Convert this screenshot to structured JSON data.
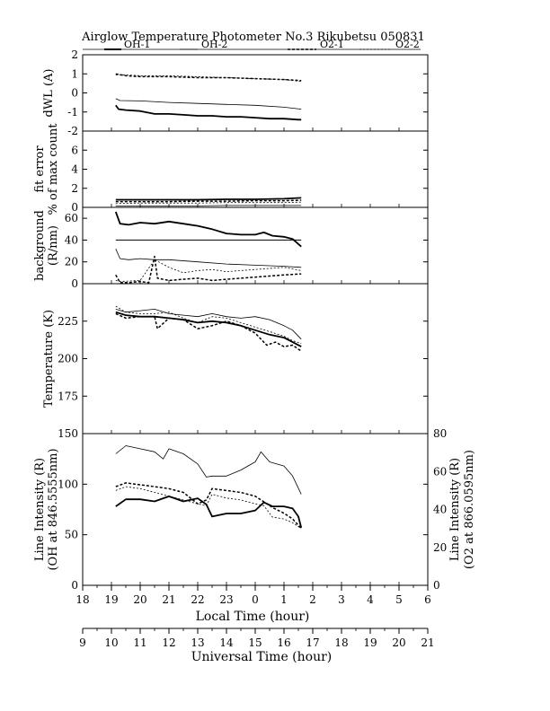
{
  "chart_data": {
    "type": "line",
    "title": "Airglow Temperature Photometer No.3  Rikubetsu   050831",
    "legend": [
      {
        "label": "OH-1",
        "color": "#000000",
        "style": "solid-thick"
      },
      {
        "label": "OH-2",
        "color": "#000000",
        "style": "solid-thin"
      },
      {
        "label": "O2-1",
        "color": "#000000",
        "style": "dashed-thick"
      },
      {
        "label": "O2-2",
        "color": "#000000",
        "style": "dashed-thin"
      }
    ],
    "legend_position": "top",
    "x_axes": {
      "local": {
        "label": "Local Time (hour)",
        "ticks": [
          "18",
          "19",
          "20",
          "21",
          "22",
          "23",
          "0",
          "1",
          "2",
          "3",
          "4",
          "5",
          "6"
        ],
        "range": [
          18,
          30
        ]
      },
      "universal": {
        "label": "Universal Time (hour)",
        "ticks": [
          "9",
          "10",
          "11",
          "12",
          "13",
          "14",
          "15",
          "16",
          "17",
          "18",
          "19",
          "20",
          "21"
        ],
        "range": [
          9,
          21
        ]
      }
    },
    "panels": [
      {
        "id": "dwl",
        "ylabel": "dWL (A)",
        "ylim": [
          -2,
          2
        ],
        "yticks": [
          "2",
          "1",
          "0",
          "-1",
          "-2"
        ],
        "series": [
          {
            "name": "OH-1",
            "x": [
              19.15,
              19.25,
              19.5,
              20.0,
              20.5,
              21.0,
              21.5,
              22.0,
              22.5,
              23.0,
              23.5,
              24.0,
              24.5,
              25.0,
              25.5,
              25.6
            ],
            "y": [
              -0.65,
              -0.85,
              -0.9,
              -0.95,
              -1.1,
              -1.1,
              -1.15,
              -1.2,
              -1.2,
              -1.25,
              -1.25,
              -1.3,
              -1.35,
              -1.35,
              -1.4,
              -1.4
            ]
          },
          {
            "name": "OH-2",
            "x": [
              19.15,
              19.3,
              20.0,
              21.0,
              22.0,
              23.0,
              24.0,
              25.0,
              25.6
            ],
            "y": [
              -0.3,
              -0.4,
              -0.42,
              -0.5,
              -0.55,
              -0.6,
              -0.65,
              -0.75,
              -0.85
            ]
          },
          {
            "name": "O2-1",
            "x": [
              19.15,
              19.5,
              20.0,
              21.0,
              22.0,
              23.0,
              24.0,
              25.0,
              25.6
            ],
            "y": [
              1.0,
              0.9,
              0.85,
              0.85,
              0.8,
              0.8,
              0.75,
              0.7,
              0.65
            ]
          },
          {
            "name": "O2-2",
            "x": [
              19.15,
              19.5,
              20.0,
              21.0,
              22.0,
              23.0,
              24.0,
              25.0,
              25.6
            ],
            "y": [
              0.95,
              0.95,
              0.9,
              0.9,
              0.85,
              0.8,
              0.75,
              0.7,
              0.6
            ]
          }
        ]
      },
      {
        "id": "fit",
        "ylabel": "fit error",
        "ylabel2": "% of max count",
        "ylim": [
          0,
          8
        ],
        "yticks": [
          "6",
          "4",
          "2",
          "0"
        ],
        "series": [
          {
            "name": "OH-1",
            "x": [
              19.15,
              20.0,
              21.0,
              22.0,
              23.0,
              24.0,
              25.0,
              25.6
            ],
            "y": [
              0.8,
              0.8,
              0.8,
              0.8,
              0.85,
              0.85,
              0.9,
              1.0
            ]
          },
          {
            "name": "OH-2",
            "x": [
              19.15,
              20.0,
              21.0,
              22.0,
              23.0,
              24.0,
              25.0,
              25.6
            ],
            "y": [
              0.15,
              0.15,
              0.15,
              0.15,
              0.2,
              0.2,
              0.2,
              0.2
            ]
          },
          {
            "name": "O2-1",
            "x": [
              19.15,
              20.0,
              21.0,
              22.0,
              23.0,
              24.0,
              25.0,
              25.6
            ],
            "y": [
              0.6,
              0.6,
              0.6,
              0.65,
              0.65,
              0.7,
              0.7,
              0.75
            ]
          },
          {
            "name": "O2-2",
            "x": [
              19.15,
              20.0,
              21.0,
              22.0,
              23.0,
              24.0,
              25.0,
              25.6
            ],
            "y": [
              0.4,
              0.45,
              0.45,
              0.45,
              0.5,
              0.5,
              0.5,
              0.55
            ]
          }
        ]
      },
      {
        "id": "bg",
        "ylabel": "background",
        "ylabel2": "(R/nm)",
        "ylim": [
          0,
          70
        ],
        "yticks": [
          "60",
          "40",
          "20",
          "0"
        ],
        "series": [
          {
            "name": "OH-1",
            "x": [
              19.15,
              19.3,
              19.6,
              20.0,
              20.5,
              21.0,
              21.5,
              22.0,
              22.5,
              23.0,
              23.5,
              24.0,
              24.3,
              24.6,
              25.0,
              25.3,
              25.6
            ],
            "y": [
              66,
              55,
              54,
              56,
              55,
              57,
              55,
              53,
              50,
              46,
              45,
              45,
              47,
              44,
              43,
              41,
              34
            ]
          },
          {
            "name": "OH-2",
            "x": [
              19.15,
              19.3,
              19.6,
              20.0,
              20.5,
              21.0,
              22.0,
              23.0,
              24.0,
              25.0,
              25.6
            ],
            "y": [
              32,
              23,
              22,
              23,
              22,
              22,
              20,
              18,
              17,
              16,
              15
            ]
          },
          {
            "name": "O2-1",
            "x": [
              19.15,
              19.3,
              19.6,
              20.0,
              20.3,
              20.5,
              20.6,
              21.0,
              21.5,
              22.0,
              22.5,
              23.0,
              23.5,
              24.0,
              24.5,
              25.0,
              25.6
            ],
            "y": [
              8,
              1,
              1,
              2,
              1,
              25,
              5,
              3,
              4,
              5,
              3,
              4,
              5,
              6,
              7,
              8,
              9
            ]
          },
          {
            "name": "O2-2",
            "x": [
              19.15,
              19.3,
              20.0,
              20.5,
              21.0,
              21.5,
              22.0,
              22.5,
              23.0,
              23.5,
              24.0,
              24.5,
              25.0,
              25.6
            ],
            "y": [
              3,
              2,
              3,
              22,
              15,
              10,
              12,
              13,
              11,
              12,
              13,
              14,
              15,
              12
            ]
          },
          {
            "name": "reference",
            "x": [
              19.15,
              25.6
            ],
            "y": [
              40,
              40
            ]
          }
        ]
      },
      {
        "id": "temp",
        "ylabel": "Temperature (K)",
        "ylim": [
          150,
          250
        ],
        "yticks": [
          "225",
          "200",
          "175"
        ],
        "series": [
          {
            "name": "OH-1",
            "x": [
              19.15,
              19.5,
              20.0,
              20.5,
              21.0,
              21.5,
              22.0,
              22.5,
              23.0,
              23.5,
              24.0,
              24.5,
              25.0,
              25.3,
              25.6
            ],
            "y": [
              231,
              229,
              228,
              228,
              227,
              226,
              224,
              225,
              224,
              222,
              219,
              216,
              214,
              211,
              208
            ]
          },
          {
            "name": "OH-2",
            "x": [
              19.15,
              19.5,
              20.0,
              20.5,
              21.0,
              21.5,
              22.0,
              22.5,
              23.0,
              23.5,
              24.0,
              24.5,
              25.0,
              25.3,
              25.6
            ],
            "y": [
              233,
              231,
              232,
              233,
              230,
              229,
              228,
              230,
              228,
              227,
              228,
              226,
              222,
              219,
              213
            ]
          },
          {
            "name": "O2-1",
            "x": [
              19.15,
              19.5,
              20.0,
              20.5,
              20.6,
              21.0,
              21.5,
              22.0,
              22.5,
              23.0,
              23.5,
              24.0,
              24.4,
              24.7,
              25.0,
              25.3,
              25.6
            ],
            "y": [
              230,
              227,
              228,
              228,
              220,
              227,
              226,
              220,
              222,
              225,
              222,
              217,
              209,
              211,
              208,
              209,
              205
            ]
          },
          {
            "name": "O2-2",
            "x": [
              19.15,
              19.5,
              20.0,
              20.5,
              21.0,
              21.5,
              22.0,
              22.5,
              23.0,
              23.5,
              24.0,
              24.5,
              25.0,
              25.3,
              25.6
            ],
            "y": [
              235,
              231,
              230,
              230,
              231,
              227,
              224,
              228,
              227,
              224,
              221,
              218,
              215,
              212,
              210
            ]
          }
        ]
      },
      {
        "id": "int",
        "ylabel": "Line Intensity (R)",
        "ylabel2": "(OH at 846.5555nm)",
        "ylim": [
          0,
          150
        ],
        "yticks": [
          "150",
          "100",
          "50",
          "0"
        ],
        "ylabel_right": "Line Intensity (R)",
        "ylabel_right2": "(O2 at 866.0595nm)",
        "ylim_right": [
          0,
          80
        ],
        "yticks_right": [
          "80",
          "60",
          "40",
          "20",
          "0"
        ],
        "series": [
          {
            "name": "OH-1",
            "axis": "left",
            "x": [
              19.15,
              19.5,
              20.0,
              20.5,
              21.0,
              21.5,
              22.0,
              22.3,
              22.5,
              23.0,
              23.5,
              24.0,
              24.3,
              24.6,
              25.0,
              25.3,
              25.5,
              25.6
            ],
            "y": [
              78,
              85,
              85,
              83,
              88,
              83,
              86,
              80,
              68,
              71,
              71,
              74,
              82,
              78,
              78,
              76,
              68,
              57
            ]
          },
          {
            "name": "OH-2",
            "axis": "left",
            "x": [
              19.15,
              19.5,
              20.0,
              20.5,
              20.8,
              21.0,
              21.5,
              22.0,
              22.3,
              22.5,
              23.0,
              23.5,
              24.0,
              24.2,
              24.5,
              25.0,
              25.3,
              25.6
            ],
            "y": [
              130,
              138,
              135,
              132,
              125,
              135,
              130,
              120,
              107,
              108,
              108,
              114,
              122,
              132,
              122,
              118,
              108,
              90
            ]
          },
          {
            "name": "O2-1",
            "axis": "right",
            "x": [
              19.15,
              19.5,
              20.0,
              20.5,
              21.0,
              21.5,
              22.0,
              22.3,
              22.5,
              23.0,
              23.5,
              24.0,
              24.3,
              24.6,
              25.0,
              25.3,
              25.6
            ],
            "y": [
              52,
              54,
              53,
              52,
              51,
              49,
              43,
              45,
              51,
              50,
              49,
              47,
              44,
              41,
              38,
              35,
              30
            ]
          },
          {
            "name": "O2-2",
            "axis": "right",
            "x": [
              19.15,
              19.5,
              20.0,
              20.5,
              21.0,
              21.5,
              22.0,
              22.3,
              22.5,
              23.0,
              23.5,
              24.0,
              24.3,
              24.6,
              25.0,
              25.3,
              25.6
            ],
            "y": [
              50,
              52,
              51,
              49,
              47,
              45,
              43,
              42,
              48,
              46,
              45,
              43,
              42,
              36,
              35,
              33,
              30
            ]
          }
        ]
      }
    ]
  }
}
